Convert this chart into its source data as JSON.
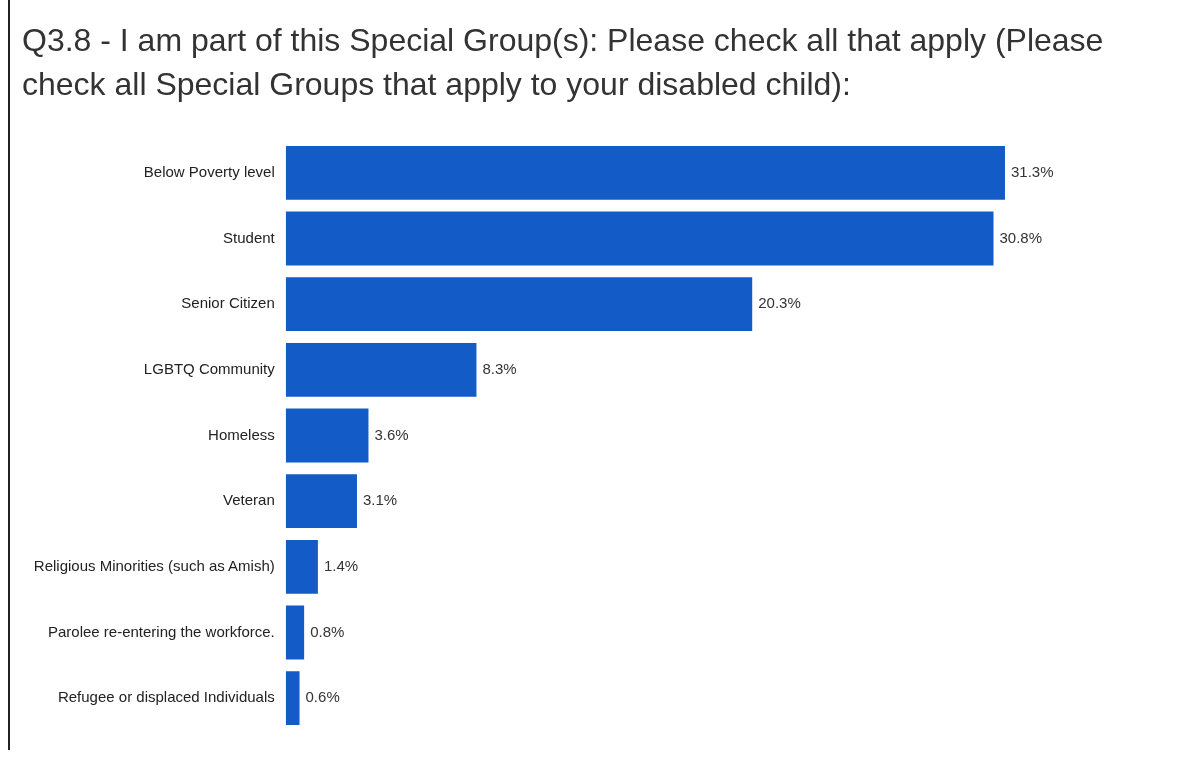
{
  "chart_data": {
    "type": "bar",
    "orientation": "horizontal",
    "title": "Q3.8 - I am part of this Special Group(s): Please check all that apply (Please check all Special Groups that apply to your disabled child):",
    "categories": [
      "Below Poverty level",
      "Student",
      "Senior Citizen",
      "LGBTQ Community",
      "Homeless",
      "Veteran",
      "Religious Minorities (such as Amish)",
      "Parolee re-entering the workforce.",
      "Refugee or displaced Individuals"
    ],
    "values": [
      31.3,
      30.8,
      20.3,
      8.3,
      3.6,
      3.1,
      1.4,
      0.8,
      0.6
    ],
    "value_labels": [
      "31.3%",
      "30.8%",
      "20.3%",
      "8.3%",
      "3.6%",
      "3.1%",
      "1.4%",
      "0.8%",
      "0.6%"
    ],
    "color": "#135cc8",
    "legend": false
  }
}
